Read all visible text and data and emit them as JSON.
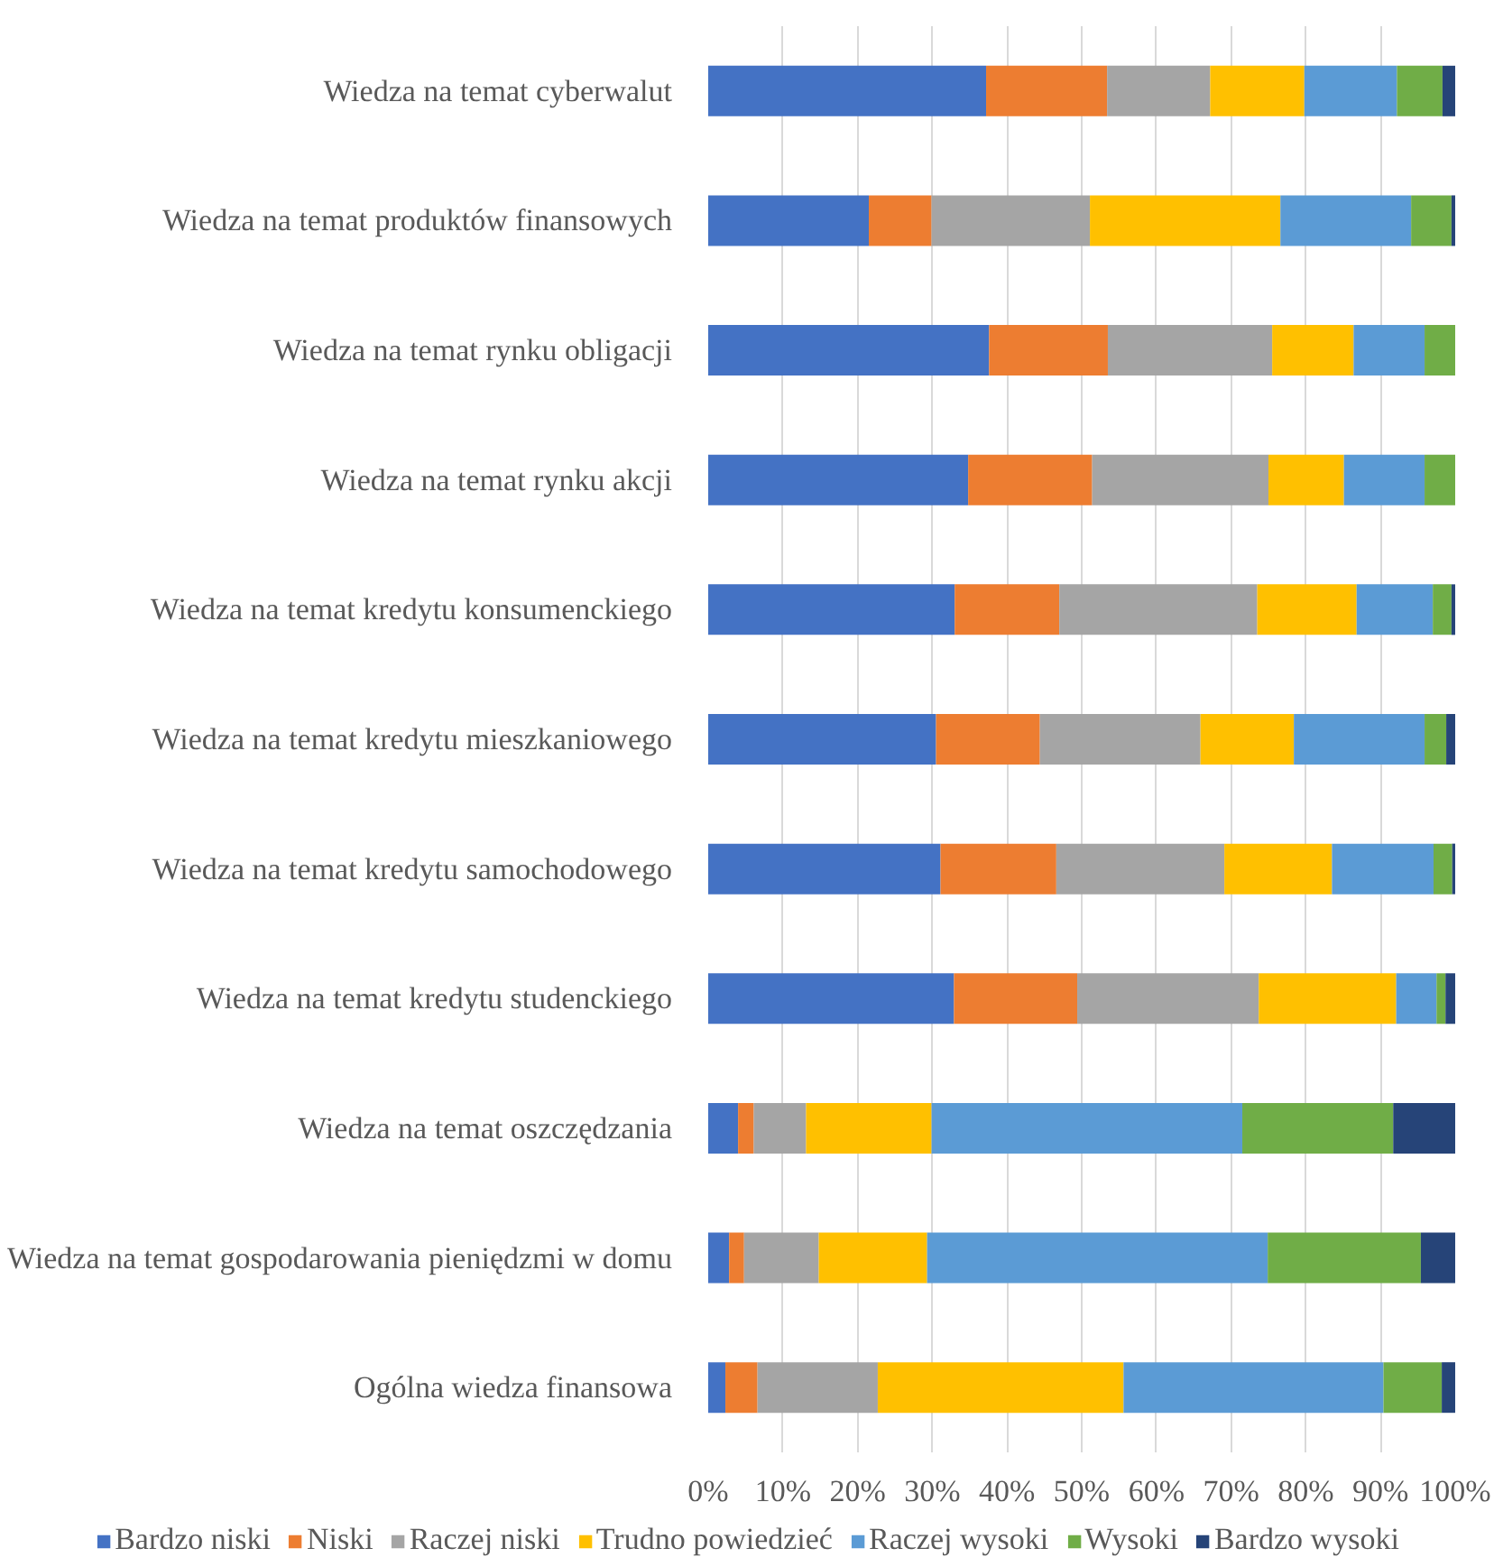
{
  "chart_data": {
    "type": "bar",
    "orientation": "horizontal",
    "stacked": true,
    "categories": [
      "Wiedza na temat cyberwalut",
      "Wiedza na temat produktów finansowych",
      "Wiedza na temat rynku obligacji",
      "Wiedza na temat rynku akcji",
      "Wiedza na temat kredytu konsumenckiego",
      "Wiedza na temat kredytu mieszkaniowego",
      "Wiedza na temat kredytu samochodowego",
      "Wiedza na temat kredytu studenckiego",
      "Wiedza na temat oszczędzania",
      "Wiedza na temat gospodarowania pieniędzmi w domu",
      "Ogólna wiedza finansowa"
    ],
    "series": [
      {
        "name": "Bardzo niski",
        "color": "#4472c4",
        "values": [
          37.2,
          21.5,
          37.6,
          34.8,
          33.0,
          30.5,
          31.1,
          32.9,
          4.0,
          2.8,
          2.3
        ]
      },
      {
        "name": "Niski",
        "color": "#ed7d31",
        "values": [
          16.2,
          8.4,
          15.9,
          16.6,
          14.0,
          13.9,
          15.5,
          16.5,
          2.1,
          2.0,
          4.3
        ]
      },
      {
        "name": "Raczej niski",
        "color": "#a5a5a5",
        "values": [
          13.8,
          21.2,
          22.0,
          23.6,
          26.5,
          21.5,
          22.5,
          24.3,
          7.0,
          10.0,
          16.1
        ]
      },
      {
        "name": "Trudno powiedzieć",
        "color": "#ffc000",
        "values": [
          12.6,
          25.5,
          10.9,
          10.1,
          13.3,
          12.5,
          14.4,
          18.4,
          16.8,
          14.5,
          32.9
        ]
      },
      {
        "name": "Raczej wysoki",
        "color": "#5b9bd5",
        "values": [
          12.4,
          17.5,
          9.5,
          10.8,
          10.2,
          17.5,
          13.6,
          5.4,
          41.6,
          45.6,
          34.8
        ]
      },
      {
        "name": "Wysoki",
        "color": "#70ad47",
        "values": [
          6.1,
          5.4,
          4.1,
          4.1,
          2.5,
          2.9,
          2.5,
          1.2,
          20.2,
          20.5,
          7.8
        ]
      },
      {
        "name": "Bardzo wysoki",
        "color": "#264478",
        "values": [
          1.7,
          0.5,
          null,
          null,
          0.5,
          1.2,
          0.5,
          1.3,
          8.3,
          4.6,
          1.8
        ]
      }
    ],
    "xlim": [
      0,
      100
    ],
    "xticks": [
      {
        "value": 0,
        "label": "0%"
      },
      {
        "value": 10,
        "label": "10%"
      },
      {
        "value": 20,
        "label": "20%"
      },
      {
        "value": 30,
        "label": "30%"
      },
      {
        "value": 40,
        "label": "40%"
      },
      {
        "value": 50,
        "label": "50%"
      },
      {
        "value": 60,
        "label": "60%"
      },
      {
        "value": 70,
        "label": "70%"
      },
      {
        "value": 80,
        "label": "80%"
      },
      {
        "value": 90,
        "label": "90%"
      },
      {
        "value": 100,
        "label": "100%"
      }
    ],
    "grid": "x",
    "legend": "bottom"
  }
}
